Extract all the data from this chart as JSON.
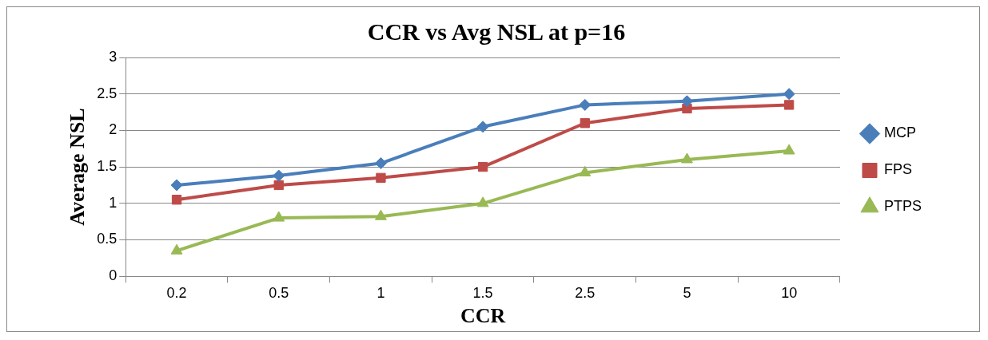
{
  "chart_data": {
    "type": "line",
    "title": "CCR vs Avg NSL at p=16",
    "xlabel": "CCR",
    "ylabel": "Average NSL",
    "categories": [
      "0.2",
      "0.5",
      "1",
      "1.5",
      "2.5",
      "5",
      "10"
    ],
    "series": [
      {
        "name": "MCP",
        "color": "#4a7ebb",
        "marker": "diamond",
        "values": [
          1.25,
          1.38,
          1.55,
          2.05,
          2.35,
          2.4,
          2.5
        ]
      },
      {
        "name": "FPS",
        "color": "#be4b48",
        "marker": "square",
        "values": [
          1.05,
          1.25,
          1.35,
          1.5,
          2.1,
          2.3,
          2.35
        ]
      },
      {
        "name": "PTPS",
        "color": "#98b954",
        "marker": "triangle",
        "values": [
          0.35,
          0.8,
          0.82,
          1.0,
          1.42,
          1.6,
          1.72
        ]
      }
    ],
    "ylim": [
      0,
      3
    ],
    "yticks": [
      0,
      0.5,
      1,
      1.5,
      2,
      2.5,
      3
    ],
    "grid": "y",
    "legend": "right",
    "line_style": "solid"
  }
}
